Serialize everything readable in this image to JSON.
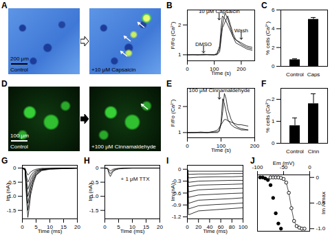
{
  "images": [
    {
      "panel": "A",
      "labels": [
        "Control",
        "+10 μM Capsaicin"
      ],
      "scale_bar": "200 μm"
    },
    {
      "panel": "D",
      "labels": [
        "Control",
        "+100 μM Cinnamaldehyde"
      ],
      "scale_bar": "100 μm"
    }
  ],
  "chart_data": [
    {
      "panel": "B",
      "type": "line",
      "x_label": "Time (s)",
      "y_label": "F/Fo (Ca²⁺)",
      "x": [
        0,
        20,
        40,
        60,
        80,
        100,
        110,
        120,
        125,
        130,
        140,
        150,
        160,
        170,
        180,
        200,
        220,
        240
      ],
      "series": [
        {
          "color": "#000000",
          "values": [
            1,
            1,
            1,
            1.02,
            1,
            1,
            1.05,
            1.3,
            1.9,
            2.3,
            2.2,
            2,
            1.8,
            1.6,
            1.5,
            1.4,
            1.3,
            1.25
          ]
        },
        {
          "color": "#000000",
          "values": [
            1,
            1.01,
            1,
            1,
            1.01,
            1,
            1,
            1.1,
            1.5,
            1.9,
            2.1,
            2.3,
            2,
            1.7,
            1.5,
            1.35,
            1.25,
            1.2
          ]
        },
        {
          "color": "#000000",
          "values": [
            1,
            1,
            1,
            1,
            1,
            1,
            1.02,
            1.2,
            1.6,
            2,
            2.4,
            2.2,
            1.9,
            1.6,
            1.4,
            1.3,
            1.2,
            1.15
          ]
        }
      ],
      "annotations": [
        {
          "text": "DMSO",
          "x": 60,
          "y": 1.3,
          "arrow": true
        },
        {
          "text": "10 μM Capsaicin",
          "x": 118,
          "y": 2.4,
          "arrow": true
        },
        {
          "text": "Wash",
          "x": 200,
          "y": 1.75,
          "arrow": true
        }
      ],
      "xlim": [
        0,
        250
      ],
      "xticks": [
        0,
        100,
        200
      ],
      "ylim": [
        0.8,
        2.5
      ],
      "yticks": [
        1,
        2
      ],
      "grid": false
    },
    {
      "panel": "C",
      "type": "bar",
      "y_label": "% cells (Ca²⁺)",
      "categories": [
        "Control",
        "Caps"
      ],
      "values": [
        0.7,
        5.0
      ],
      "errors": [
        0.1,
        0.2
      ],
      "color": "#000000",
      "ylim": [
        0,
        6
      ],
      "yticks": [
        0,
        2,
        4,
        6
      ],
      "grid": false
    },
    {
      "panel": "E",
      "type": "line",
      "x_label": "Time (s)",
      "y_label": "F/Fo (Ca²⁺)",
      "x": [
        0,
        20,
        40,
        60,
        80,
        90,
        95,
        100,
        105,
        110,
        115,
        120,
        130,
        140,
        150,
        160,
        180
      ],
      "series": [
        {
          "color": "#000000",
          "values": [
            1,
            1,
            1,
            1,
            1,
            1,
            1.05,
            1.4,
            2.3,
            2.1,
            1.8,
            1.5,
            1.3,
            1.2,
            1.15,
            1.1,
            1.1
          ]
        },
        {
          "color": "#000000",
          "values": [
            1,
            1,
            1,
            1,
            1.02,
            1.03,
            1.1,
            1.3,
            1.8,
            2.5,
            2.3,
            1.9,
            1.5,
            1.3,
            1.2,
            1.15,
            1.1
          ]
        },
        {
          "color": "#000000",
          "values": [
            1,
            1,
            1.02,
            1,
            1.05,
            1.1,
            1.2,
            1.3,
            1.4,
            1.5,
            1.5,
            1.45,
            1.4,
            1.35,
            1.3,
            1.3,
            1.25
          ]
        }
      ],
      "annotations": [
        {
          "text": "100 μM Cinnamaldehyde",
          "x": 95,
          "y": 2.55,
          "arrow": true
        }
      ],
      "xlim": [
        0,
        200
      ],
      "xticks": [
        0,
        100,
        200
      ],
      "ylim": [
        0.8,
        2.7
      ],
      "yticks": [
        1,
        2
      ],
      "grid": false
    },
    {
      "panel": "F",
      "type": "bar",
      "y_label": "% cells (Ca²⁺)",
      "categories": [
        "Control",
        "Cinn"
      ],
      "values": [
        0.8,
        1.8
      ],
      "errors": [
        0.35,
        0.45
      ],
      "color": "#000000",
      "ylim": [
        0,
        2.5
      ],
      "yticks": [
        0,
        1,
        2
      ],
      "grid": false
    },
    {
      "panel": "G",
      "type": "line",
      "x_label": "Time (ms)",
      "y_label": "Im (nA)",
      "x": [
        0,
        1,
        1.5,
        2,
        2.5,
        3,
        4,
        5,
        7,
        10,
        15,
        20
      ],
      "series": [
        {
          "color": "#000000",
          "values": [
            0,
            -0.09,
            -1.05,
            -1.75,
            -1.4,
            -0.96,
            -0.53,
            -0.26,
            -0.09,
            -0.04,
            -0.02,
            0
          ]
        },
        {
          "color": "#000000",
          "values": [
            0,
            -0.08,
            -0.9,
            -1.5,
            -1.2,
            -0.83,
            -0.45,
            -0.23,
            -0.08,
            -0.03,
            -0.02,
            0
          ]
        },
        {
          "color": "#000000",
          "values": [
            0,
            -0.06,
            -0.75,
            -1.25,
            -1.0,
            -0.69,
            -0.38,
            -0.19,
            -0.06,
            -0.03,
            -0.01,
            0
          ]
        },
        {
          "color": "#000000",
          "values": [
            0,
            -0.05,
            -0.6,
            -1.0,
            -0.8,
            -0.55,
            -0.3,
            -0.15,
            -0.05,
            -0.02,
            -0.01,
            0
          ]
        },
        {
          "color": "#000000",
          "values": [
            0,
            -0.04,
            -0.45,
            -0.75,
            -0.6,
            -0.41,
            -0.23,
            -0.11,
            -0.04,
            -0.02,
            -0.01,
            0
          ]
        },
        {
          "color": "#000000",
          "values": [
            0,
            -0.03,
            -0.3,
            -0.5,
            -0.4,
            -0.28,
            -0.15,
            -0.08,
            -0.03,
            -0.01,
            0,
            0
          ]
        },
        {
          "color": "#000000",
          "values": [
            0,
            -0.01,
            -0.15,
            -0.25,
            -0.2,
            -0.14,
            -0.08,
            -0.04,
            -0.01,
            -0.01,
            0,
            0
          ]
        }
      ],
      "xlim": [
        0,
        20
      ],
      "xticks": [
        0,
        5,
        10,
        15,
        20
      ],
      "ylim": [
        -1.8,
        0.1
      ],
      "yticks": [
        -1.5,
        {
          "value": -1,
          "label": "-1.0"
        },
        -0.5,
        0
      ],
      "grid": false
    },
    {
      "panel": "H",
      "type": "line",
      "x_label": "Time (ms)",
      "y_label": "Im (nA)",
      "x": [
        0,
        1,
        1.5,
        2,
        2.5,
        3,
        4,
        5,
        7,
        10,
        15,
        20
      ],
      "series": [
        {
          "color": "#000000",
          "values": [
            0,
            -0.02,
            -0.2,
            -0.3,
            -0.2,
            -0.12,
            -0.06,
            -0.03,
            -0.01,
            0,
            0,
            0
          ]
        },
        {
          "color": "#000000",
          "values": [
            0,
            -0.01,
            -0.13,
            -0.2,
            -0.14,
            -0.08,
            -0.04,
            -0.02,
            -0.01,
            0,
            0,
            0
          ]
        },
        {
          "color": "#000000",
          "values": [
            0,
            -0.01,
            -0.06,
            -0.1,
            -0.07,
            -0.04,
            -0.02,
            -0.01,
            0,
            0,
            0,
            0
          ]
        }
      ],
      "annotations": [
        {
          "text": "+ 1 μM TTX",
          "x": 11,
          "y": -0.45,
          "arrow": false
        }
      ],
      "xlim": [
        0,
        20
      ],
      "xticks": [
        0,
        5,
        10,
        15,
        20
      ],
      "ylim": [
        -1.8,
        0.1
      ],
      "yticks": [
        -1.5,
        {
          "value": -1,
          "label": "-1.0"
        },
        -0.5,
        0
      ],
      "grid": false
    },
    {
      "panel": "I",
      "type": "line",
      "x_label": "Time (ms)",
      "y_label": "Im (nA)",
      "x": [
        0,
        2,
        20,
        50,
        80,
        100
      ],
      "series": [
        {
          "color": "#000000",
          "values": [
            0,
            -0.05,
            -0.05,
            -0.05,
            -0.05,
            -0.05
          ]
        },
        {
          "color": "#000000",
          "values": [
            0,
            -0.13,
            -0.12,
            -0.12,
            -0.11,
            -0.11
          ]
        },
        {
          "color": "#000000",
          "values": [
            0,
            -0.22,
            -0.2,
            -0.19,
            -0.19,
            -0.18
          ]
        },
        {
          "color": "#000000",
          "values": [
            0,
            -0.33,
            -0.3,
            -0.29,
            -0.28,
            -0.28
          ]
        },
        {
          "color": "#000000",
          "values": [
            0,
            -0.44,
            -0.4,
            -0.39,
            -0.38,
            -0.37
          ]
        },
        {
          "color": "#000000",
          "values": [
            0,
            -0.57,
            -0.52,
            -0.5,
            -0.49,
            -0.48
          ]
        },
        {
          "color": "#000000",
          "values": [
            0,
            -0.71,
            -0.65,
            -0.63,
            -0.61,
            -0.6
          ]
        },
        {
          "color": "#000000",
          "values": [
            0,
            -0.86,
            -0.78,
            -0.76,
            -0.74,
            -0.72
          ]
        },
        {
          "color": "#000000",
          "values": [
            0,
            -1.0,
            -0.92,
            -0.89,
            -0.87,
            -0.85
          ]
        },
        {
          "color": "#000000",
          "values": [
            0,
            -1.15,
            -1.05,
            -1.02,
            -0.99,
            -0.97
          ]
        }
      ],
      "xlim": [
        0,
        100
      ],
      "xticks": [
        0,
        20,
        40,
        60,
        80,
        100
      ],
      "ylim": [
        -1.25,
        0.1
      ],
      "yticks": [
        -1.2,
        -0.9,
        -0.6,
        -0.3,
        0
      ],
      "grid": false
    },
    {
      "panel": "J",
      "type": "scatter",
      "x_label": "Em (mV)",
      "y_label": "Im / Imax",
      "series": [
        {
          "color": "#000000",
          "marker": "circle",
          "x": [
            -95,
            -90,
            -85,
            -80,
            -75,
            -70,
            -65,
            -60,
            -55
          ],
          "values": [
            0,
            0,
            -0.02,
            -0.05,
            -0.15,
            -0.4,
            -0.7,
            -0.9,
            -1.0
          ]
        },
        {
          "color": "#000000",
          "marker": "circle-open",
          "line_style": "solid",
          "x": [
            -75,
            -70,
            -65,
            -60,
            -55,
            -50,
            -45,
            -40,
            -35,
            -30,
            -25,
            -20,
            -15,
            -10
          ],
          "values": [
            0,
            0,
            0,
            0,
            -0.01,
            -0.03,
            -0.1,
            -0.3,
            -0.6,
            -0.85,
            -0.95,
            -0.98,
            -1.0,
            -1.0
          ]
        }
      ],
      "xlim": [
        -100,
        0
      ],
      "xticks": [
        -100,
        -50,
        0
      ],
      "ylim": [
        -1.05,
        0.05
      ],
      "yticks": [
        {
          "value": -1,
          "label": "-1.0"
        },
        -0.5,
        0
      ],
      "grid": false
    }
  ]
}
